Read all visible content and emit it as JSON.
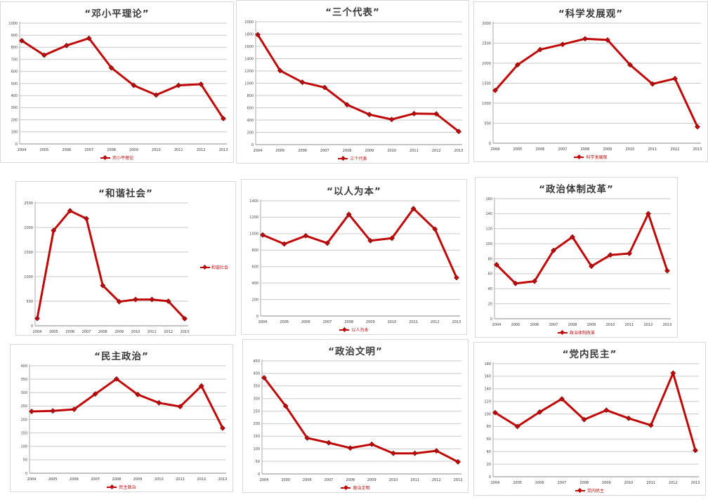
{
  "page": {
    "background": "#ffffff"
  },
  "colors": {
    "series": "#c00808",
    "series_edge": "#7e0505",
    "gridline": "#c9c9c9",
    "axis": "#8a8a8a",
    "title": "#3b3b3b"
  },
  "chart_data": [
    {
      "type": "line",
      "title": "“邓小平理论”",
      "legend": "邓小平理论",
      "legend_position": "bottom",
      "categories": [
        "2004",
        "2005",
        "2006",
        "2007",
        "2008",
        "2009",
        "2010",
        "2011",
        "2012",
        "2013"
      ],
      "values": [
        855,
        735,
        815,
        875,
        630,
        485,
        405,
        485,
        495,
        210
      ],
      "ylim": [
        0,
        1000
      ],
      "ystep": 100,
      "grid": true
    },
    {
      "type": "line",
      "title": "“三个代表”",
      "legend": "三个代表",
      "legend_position": "bottom",
      "categories": [
        "2004",
        "2005",
        "2006",
        "2007",
        "2008",
        "2009",
        "2010",
        "2011",
        "2012",
        "2013"
      ],
      "values": [
        1790,
        1205,
        1015,
        930,
        650,
        490,
        410,
        505,
        500,
        215
      ],
      "ylim": [
        0,
        2000
      ],
      "ystep": 200,
      "grid": true
    },
    {
      "type": "line",
      "title": "“科学发展观”",
      "legend": "科学发展观",
      "legend_position": "bottom",
      "categories": [
        "2004",
        "2005",
        "2006",
        "2007",
        "2008",
        "2009",
        "2010",
        "2011",
        "2012",
        "2013"
      ],
      "values": [
        1320,
        1960,
        2340,
        2470,
        2610,
        2580,
        1960,
        1480,
        1615,
        410
      ],
      "ylim": [
        0,
        3000
      ],
      "ystep": 500,
      "grid": true
    },
    {
      "type": "line",
      "title": "“和谐社会”",
      "legend": "和谐社会",
      "legend_position": "right",
      "categories": [
        "2004",
        "2005",
        "2006",
        "2007",
        "2008",
        "2009",
        "2010",
        "2011",
        "2012",
        "2013"
      ],
      "values": [
        150,
        1940,
        2340,
        2180,
        820,
        490,
        535,
        535,
        500,
        145
      ],
      "ylim": [
        0,
        2500
      ],
      "ystep": 500,
      "grid": true
    },
    {
      "type": "line",
      "title": "“以人为本”",
      "legend": "以人为本",
      "legend_position": "bottom",
      "categories": [
        "2004",
        "2005",
        "2006",
        "2007",
        "2008",
        "2009",
        "2010",
        "2011",
        "2012",
        "2013"
      ],
      "values": [
        985,
        875,
        975,
        885,
        1235,
        915,
        945,
        1305,
        1055,
        465
      ],
      "ylim": [
        0,
        1400
      ],
      "ystep": 200,
      "grid": true
    },
    {
      "type": "line",
      "title": "“政治体制改革”",
      "legend": "政治体制改革",
      "legend_position": "bottom",
      "categories": [
        "2004",
        "2005",
        "2006",
        "2007",
        "2008",
        "2009",
        "2010",
        "2011",
        "2012",
        "2013"
      ],
      "values": [
        72,
        47,
        50,
        91,
        109,
        70,
        85,
        87,
        140,
        64
      ],
      "ylim": [
        0,
        160
      ],
      "ystep": 20,
      "grid": true
    },
    {
      "type": "line",
      "title": "“民主政治”",
      "legend": "民主政治",
      "legend_position": "bottom",
      "categories": [
        "2004",
        "2005",
        "2006",
        "2007",
        "2008",
        "2009",
        "2010",
        "2011",
        "2012",
        "2013"
      ],
      "values": [
        230,
        232,
        238,
        295,
        351,
        293,
        262,
        248,
        325,
        168
      ],
      "ylim": [
        0,
        400
      ],
      "ystep": 50,
      "grid": true
    },
    {
      "type": "line",
      "title": "“政治文明”",
      "legend": "政治文明",
      "legend_position": "bottom",
      "categories": [
        "2004",
        "2005",
        "2006",
        "2007",
        "2008",
        "2009",
        "2010",
        "2011",
        "2012",
        "2013"
      ],
      "values": [
        383,
        270,
        143,
        124,
        103,
        118,
        82,
        82,
        92,
        48
      ],
      "ylim": [
        0,
        450
      ],
      "ystep": 50,
      "grid": true
    },
    {
      "type": "line",
      "title": "“党内民主”",
      "legend": "党内民主",
      "legend_position": "bottom",
      "categories": [
        "2004",
        "2005",
        "2006",
        "2007",
        "2008",
        "2009",
        "2010",
        "2011",
        "2012",
        "2013"
      ],
      "values": [
        102,
        80,
        103,
        124,
        91,
        106,
        93,
        82,
        165,
        42
      ],
      "ylim": [
        0,
        180
      ],
      "ystep": 20,
      "grid": true
    }
  ]
}
